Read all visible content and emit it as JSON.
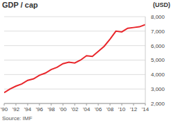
{
  "chart_data": {
    "type": "line",
    "title": "GDP / cap",
    "ylabel": "(USD)",
    "source": "Source: IMF",
    "x": [
      1990,
      1991,
      1992,
      1993,
      1994,
      1995,
      1996,
      1997,
      1998,
      1999,
      2000,
      2001,
      2002,
      2003,
      2004,
      2005,
      2006,
      2007,
      2008,
      2009,
      2010,
      2011,
      2012,
      2013,
      2014
    ],
    "series": [
      {
        "name": "GDP / cap",
        "color": "#e8262b",
        "values": [
          2750,
          3000,
          3200,
          3350,
          3600,
          3700,
          3950,
          4100,
          4350,
          4500,
          4750,
          4850,
          4800,
          5000,
          5300,
          5250,
          5600,
          5950,
          6450,
          7000,
          6950,
          7200,
          7250,
          7300,
          7450
        ]
      }
    ],
    "xlim": [
      1990,
      2014
    ],
    "xticks": [
      {
        "value": 1990,
        "label": "'90"
      },
      {
        "value": 1992,
        "label": "'92"
      },
      {
        "value": 1994,
        "label": "'94"
      },
      {
        "value": 1996,
        "label": "'96"
      },
      {
        "value": 1998,
        "label": "'98"
      },
      {
        "value": 2000,
        "label": "'00"
      },
      {
        "value": 2002,
        "label": "'02"
      },
      {
        "value": 2004,
        "label": "'04"
      },
      {
        "value": 2006,
        "label": "'06"
      },
      {
        "value": 2008,
        "label": "'08"
      },
      {
        "value": 2010,
        "label": "'10"
      },
      {
        "value": 2012,
        "label": "'12"
      },
      {
        "value": 2014,
        "label": "'14"
      }
    ],
    "ylim": [
      2000,
      8000
    ],
    "yticks": [
      {
        "value": 2000,
        "label": "2,000"
      },
      {
        "value": 3000,
        "label": "3,000"
      },
      {
        "value": 4000,
        "label": "4,000"
      },
      {
        "value": 5000,
        "label": "5,000"
      },
      {
        "value": 6000,
        "label": "6,000"
      },
      {
        "value": 7000,
        "label": "7,000"
      },
      {
        "value": 8000,
        "label": "8,000"
      }
    ],
    "grid": true
  }
}
